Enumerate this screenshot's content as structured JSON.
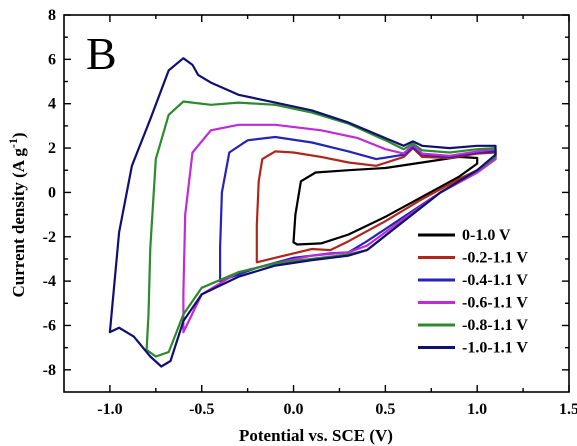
{
  "chart_data": {
    "type": "line",
    "panel_label": "B",
    "xlabel": "Potential vs. SCE (V)",
    "ylabel_main": "Current density (A g",
    "ylabel_sup": "-1",
    "ylabel_end": ")",
    "xlim": [
      -1.25,
      1.5
    ],
    "ylim": [
      -9,
      8
    ],
    "xticks": [
      -1.0,
      -0.5,
      0.0,
      0.5,
      1.0,
      1.5
    ],
    "xtick_labels": [
      "-1.0",
      "-0.5",
      "0.0",
      "0.5",
      "1.0",
      "1.5"
    ],
    "yticks": [
      -8,
      -6,
      -4,
      -2,
      0,
      2,
      4,
      6,
      8
    ],
    "ytick_labels": [
      "-8",
      "-6",
      "-4",
      "-2",
      "0",
      "2",
      "4",
      "6",
      "8"
    ],
    "grid": false,
    "legend_position": "bottom-right",
    "series": [
      {
        "name": "0-1.0 V",
        "color": "#000000",
        "points": [
          [
            0,
            -2.25
          ],
          [
            0.02,
            -2.35
          ],
          [
            0.15,
            -2.3
          ],
          [
            0.3,
            -1.9
          ],
          [
            0.5,
            -1.1
          ],
          [
            0.7,
            -0.2
          ],
          [
            0.9,
            0.7
          ],
          [
            1.0,
            1.3
          ],
          [
            1.0,
            1.55
          ],
          [
            0.9,
            1.6
          ],
          [
            0.7,
            1.35
          ],
          [
            0.5,
            1.1
          ],
          [
            0.3,
            1.0
          ],
          [
            0.12,
            0.9
          ],
          [
            0.04,
            0.5
          ],
          [
            0.01,
            -1.0
          ],
          [
            0,
            -2.25
          ]
        ]
      },
      {
        "name": "-0.2-1.1 V",
        "color": "#b0261c",
        "points": [
          [
            -0.2,
            -3.15
          ],
          [
            -0.1,
            -2.95
          ],
          [
            0.0,
            -2.75
          ],
          [
            0.1,
            -2.55
          ],
          [
            0.2,
            -2.6
          ],
          [
            0.3,
            -2.2
          ],
          [
            0.5,
            -1.3
          ],
          [
            0.7,
            -0.3
          ],
          [
            0.9,
            0.6
          ],
          [
            1.05,
            1.2
          ],
          [
            1.1,
            1.6
          ],
          [
            1.1,
            1.8
          ],
          [
            1.0,
            1.75
          ],
          [
            0.85,
            1.55
          ],
          [
            0.7,
            1.6
          ],
          [
            0.65,
            2.0
          ],
          [
            0.6,
            1.6
          ],
          [
            0.45,
            1.2
          ],
          [
            0.3,
            1.35
          ],
          [
            0.15,
            1.6
          ],
          [
            0.0,
            1.8
          ],
          [
            -0.1,
            1.85
          ],
          [
            -0.17,
            1.5
          ],
          [
            -0.19,
            0.5
          ],
          [
            -0.2,
            -1.5
          ],
          [
            -0.2,
            -3.15
          ]
        ]
      },
      {
        "name": "-0.4-1.1 V",
        "color": "#2424b8",
        "points": [
          [
            -0.4,
            -4.0
          ],
          [
            -0.2,
            -3.4
          ],
          [
            0.0,
            -2.95
          ],
          [
            0.2,
            -2.75
          ],
          [
            0.3,
            -2.7
          ],
          [
            0.4,
            -2.2
          ],
          [
            0.6,
            -1.1
          ],
          [
            0.8,
            0.0
          ],
          [
            1.0,
            0.9
          ],
          [
            1.1,
            1.5
          ],
          [
            1.1,
            1.85
          ],
          [
            1.0,
            1.8
          ],
          [
            0.85,
            1.6
          ],
          [
            0.7,
            1.7
          ],
          [
            0.65,
            2.05
          ],
          [
            0.6,
            1.7
          ],
          [
            0.45,
            1.5
          ],
          [
            0.3,
            1.85
          ],
          [
            0.1,
            2.25
          ],
          [
            -0.1,
            2.5
          ],
          [
            -0.25,
            2.35
          ],
          [
            -0.35,
            1.8
          ],
          [
            -0.39,
            0.0
          ],
          [
            -0.4,
            -2.5
          ],
          [
            -0.4,
            -4.0
          ]
        ]
      },
      {
        "name": "-0.6-1.1 V",
        "color": "#c02bd9",
        "points": [
          [
            -0.6,
            -6.3
          ],
          [
            -0.5,
            -4.6
          ],
          [
            -0.3,
            -3.6
          ],
          [
            -0.1,
            -3.2
          ],
          [
            0.1,
            -2.85
          ],
          [
            0.3,
            -2.7
          ],
          [
            0.4,
            -2.4
          ],
          [
            0.6,
            -1.2
          ],
          [
            0.8,
            0.0
          ],
          [
            1.0,
            0.9
          ],
          [
            1.1,
            1.5
          ],
          [
            1.1,
            1.95
          ],
          [
            1.0,
            1.85
          ],
          [
            0.85,
            1.65
          ],
          [
            0.7,
            1.75
          ],
          [
            0.65,
            2.15
          ],
          [
            0.6,
            1.75
          ],
          [
            0.5,
            1.95
          ],
          [
            0.35,
            2.45
          ],
          [
            0.15,
            2.8
          ],
          [
            -0.1,
            3.05
          ],
          [
            -0.3,
            3.05
          ],
          [
            -0.45,
            2.8
          ],
          [
            -0.55,
            1.8
          ],
          [
            -0.59,
            -1.0
          ],
          [
            -0.6,
            -4.5
          ],
          [
            -0.6,
            -6.3
          ]
        ]
      },
      {
        "name": "-0.8-1.1 V",
        "color": "#2d8a2d",
        "points": [
          [
            -0.8,
            -7.1
          ],
          [
            -0.75,
            -7.4
          ],
          [
            -0.68,
            -7.2
          ],
          [
            -0.6,
            -5.5
          ],
          [
            -0.5,
            -4.3
          ],
          [
            -0.3,
            -3.6
          ],
          [
            -0.1,
            -3.2
          ],
          [
            0.1,
            -3.0
          ],
          [
            0.3,
            -2.8
          ],
          [
            0.4,
            -2.6
          ],
          [
            0.6,
            -1.3
          ],
          [
            0.8,
            0.0
          ],
          [
            1.0,
            1.0
          ],
          [
            1.1,
            1.6
          ],
          [
            1.1,
            2.0
          ],
          [
            1.0,
            1.95
          ],
          [
            0.85,
            1.8
          ],
          [
            0.7,
            1.9
          ],
          [
            0.65,
            2.2
          ],
          [
            0.6,
            1.95
          ],
          [
            0.5,
            2.35
          ],
          [
            0.3,
            3.1
          ],
          [
            0.1,
            3.6
          ],
          [
            -0.1,
            3.95
          ],
          [
            -0.3,
            4.05
          ],
          [
            -0.45,
            3.95
          ],
          [
            -0.55,
            4.05
          ],
          [
            -0.6,
            4.1
          ],
          [
            -0.68,
            3.5
          ],
          [
            -0.75,
            1.5
          ],
          [
            -0.78,
            -2.5
          ],
          [
            -0.79,
            -5.5
          ],
          [
            -0.8,
            -7.1
          ]
        ]
      },
      {
        "name": "-1.0-1.1 V",
        "color": "#101070",
        "points": [
          [
            -1.0,
            -6.3
          ],
          [
            -0.95,
            -6.1
          ],
          [
            -0.87,
            -6.5
          ],
          [
            -0.78,
            -7.4
          ],
          [
            -0.72,
            -7.85
          ],
          [
            -0.67,
            -7.6
          ],
          [
            -0.6,
            -5.8
          ],
          [
            -0.5,
            -4.6
          ],
          [
            -0.3,
            -3.8
          ],
          [
            -0.1,
            -3.3
          ],
          [
            0.1,
            -3.05
          ],
          [
            0.3,
            -2.85
          ],
          [
            0.4,
            -2.6
          ],
          [
            0.6,
            -1.3
          ],
          [
            0.8,
            0.0
          ],
          [
            1.0,
            1.0
          ],
          [
            1.1,
            1.7
          ],
          [
            1.1,
            2.1
          ],
          [
            1.0,
            2.1
          ],
          [
            0.85,
            2.0
          ],
          [
            0.7,
            2.1
          ],
          [
            0.65,
            2.3
          ],
          [
            0.6,
            2.1
          ],
          [
            0.5,
            2.45
          ],
          [
            0.3,
            3.15
          ],
          [
            0.1,
            3.7
          ],
          [
            -0.1,
            4.05
          ],
          [
            -0.3,
            4.4
          ],
          [
            -0.45,
            4.95
          ],
          [
            -0.52,
            5.3
          ],
          [
            -0.55,
            5.75
          ],
          [
            -0.6,
            6.05
          ],
          [
            -0.68,
            5.5
          ],
          [
            -0.78,
            3.3
          ],
          [
            -0.88,
            1.2
          ],
          [
            -0.95,
            -1.8
          ],
          [
            -1.0,
            -6.3
          ]
        ]
      }
    ]
  }
}
